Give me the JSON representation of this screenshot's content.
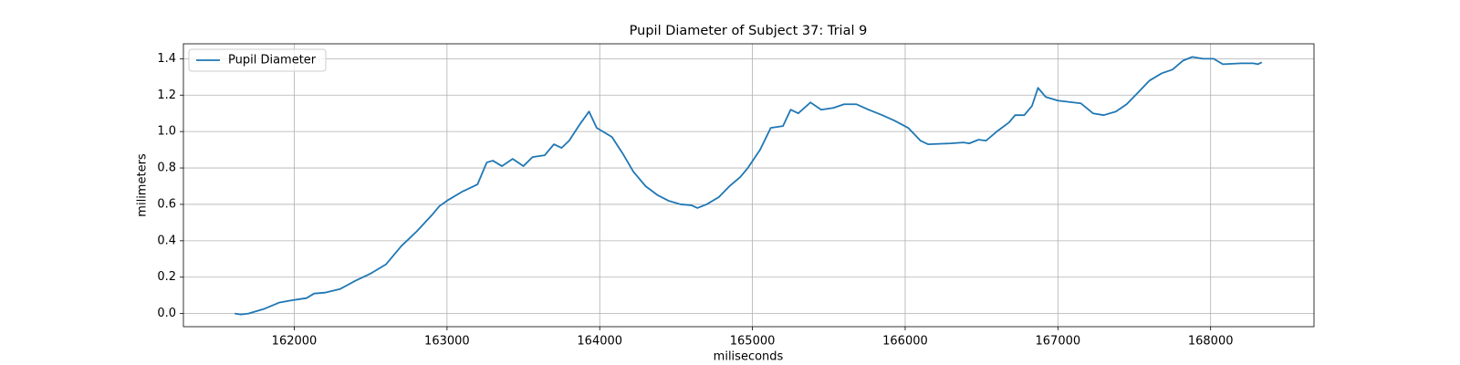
{
  "chart_data": {
    "type": "line",
    "title": "Pupil Diameter of Subject 37: Trial 9",
    "xlabel": "miliseconds",
    "ylabel": "milimeters",
    "x": [
      161610,
      161650,
      161700,
      161800,
      161900,
      162000,
      162080,
      162130,
      162200,
      162300,
      162400,
      162450,
      162500,
      162600,
      162700,
      162800,
      162900,
      162950,
      163000,
      163100,
      163200,
      163260,
      163300,
      163360,
      163430,
      163500,
      163560,
      163640,
      163700,
      163750,
      163800,
      163870,
      163930,
      163980,
      164080,
      164150,
      164220,
      164300,
      164380,
      164450,
      164530,
      164600,
      164640,
      164700,
      164780,
      164850,
      164920,
      164970,
      165050,
      165120,
      165200,
      165250,
      165300,
      165380,
      165450,
      165530,
      165600,
      165680,
      165760,
      165850,
      165930,
      166020,
      166100,
      166150,
      166300,
      166380,
      166420,
      166480,
      166530,
      166600,
      166680,
      166720,
      166780,
      166830,
      166870,
      166920,
      167000,
      167050,
      167150,
      167230,
      167300,
      167380,
      167450,
      167520,
      167600,
      167680,
      167750,
      167820,
      167880,
      167950,
      168020,
      168080,
      168200,
      168280,
      168310,
      168335
    ],
    "series": [
      {
        "name": "Pupil Diameter",
        "color": "#1f77b4",
        "values": [
          0.0,
          -0.005,
          0.0,
          0.025,
          0.06,
          0.075,
          0.085,
          0.11,
          0.115,
          0.135,
          0.18,
          0.2,
          0.22,
          0.27,
          0.37,
          0.45,
          0.54,
          0.59,
          0.62,
          0.67,
          0.71,
          0.83,
          0.84,
          0.81,
          0.85,
          0.81,
          0.86,
          0.87,
          0.93,
          0.91,
          0.95,
          1.04,
          1.11,
          1.02,
          0.97,
          0.88,
          0.78,
          0.7,
          0.65,
          0.62,
          0.6,
          0.595,
          0.58,
          0.6,
          0.64,
          0.7,
          0.75,
          0.8,
          0.9,
          1.02,
          1.03,
          1.12,
          1.1,
          1.16,
          1.12,
          1.13,
          1.15,
          1.15,
          1.12,
          1.09,
          1.06,
          1.02,
          0.95,
          0.93,
          0.935,
          0.94,
          0.935,
          0.955,
          0.95,
          1.0,
          1.05,
          1.09,
          1.09,
          1.14,
          1.24,
          1.19,
          1.17,
          1.165,
          1.155,
          1.1,
          1.09,
          1.11,
          1.15,
          1.21,
          1.28,
          1.32,
          1.34,
          1.39,
          1.41,
          1.4,
          1.4,
          1.37,
          1.375,
          1.375,
          1.37,
          1.38
        ]
      }
    ],
    "xlim": [
      161274,
      168677
    ],
    "ylim": [
      -0.072,
      1.482
    ],
    "xticks": [
      162000,
      163000,
      164000,
      165000,
      166000,
      167000,
      168000
    ],
    "yticks": [
      {
        "value": 0,
        "label": "0.0"
      },
      0.2,
      0.4,
      0.6,
      0.8,
      {
        "value": 1,
        "label": "1.0"
      },
      1.2,
      1.4
    ],
    "grid": true,
    "legend": "upper left"
  }
}
